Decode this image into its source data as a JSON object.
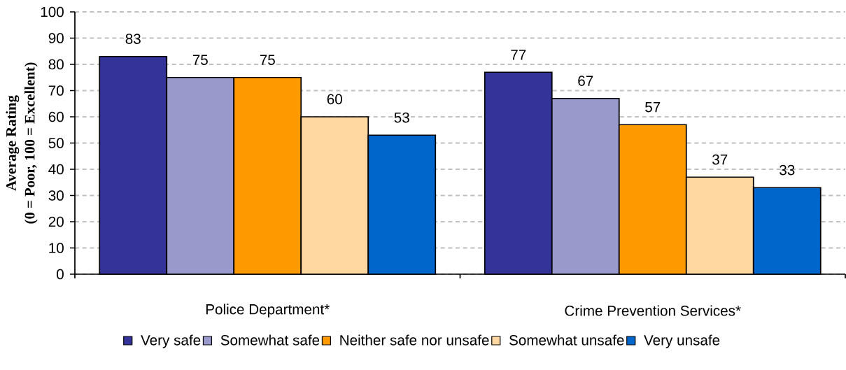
{
  "chart_data": {
    "type": "bar",
    "ylabel": "Average Rating (0 = Poor, 100 = Excellent)",
    "categories": [
      "Police Department*",
      "Crime Prevention Services*"
    ],
    "series": [
      {
        "name": "Very safe",
        "color": "#333399",
        "values": [
          83,
          77
        ]
      },
      {
        "name": "Somewhat safe",
        "color": "#9999cc",
        "values": [
          75,
          67
        ]
      },
      {
        "name": "Neither safe nor unsafe",
        "color": "#ff9900",
        "values": [
          75,
          57
        ]
      },
      {
        "name": "Somewhat unsafe",
        "color": "#ffd7a0",
        "values": [
          60,
          37
        ]
      },
      {
        "name": "Very unsafe",
        "color": "#0066cc",
        "values": [
          53,
          33
        ]
      }
    ],
    "ylim": [
      0,
      100
    ],
    "yticks": [
      0,
      10,
      20,
      30,
      40,
      50,
      60,
      70,
      80,
      90,
      100
    ],
    "grid": "y",
    "legend": "bottom",
    "data_labels": true
  }
}
